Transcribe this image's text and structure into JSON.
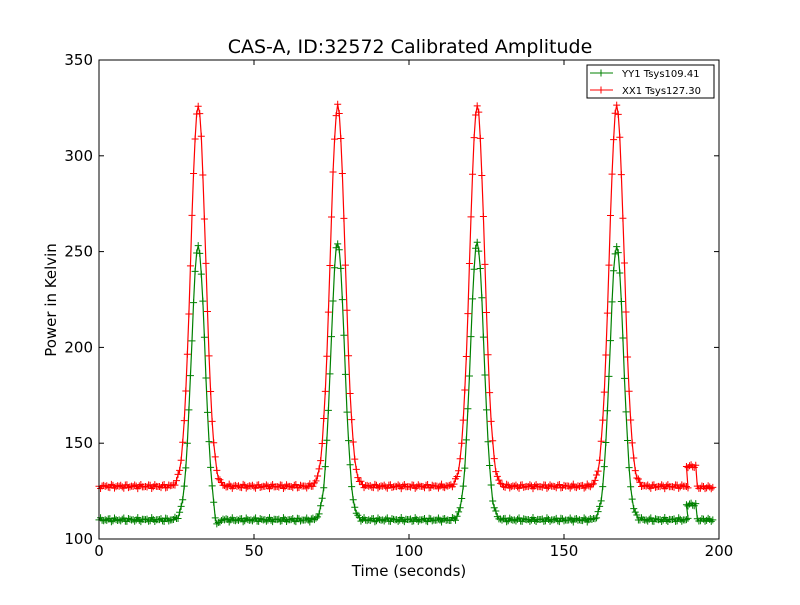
{
  "chart_data": {
    "type": "line",
    "title": "CAS-A, ID:32572 Calibrated Amplitude",
    "xlabel": "Time (seconds)",
    "ylabel": "Power in Kelvin",
    "xlim": [
      0,
      200
    ],
    "ylim": [
      100,
      350
    ],
    "xticks": [
      0,
      50,
      100,
      150,
      200
    ],
    "yticks": [
      100,
      150,
      200,
      250,
      300,
      350
    ],
    "grid": false,
    "legend_position": "top-right",
    "series": [
      {
        "name": "YY1 Tsys109.41",
        "color": "#008000",
        "marker": "plus",
        "baseline": 110,
        "peaks": [
          {
            "center": 32,
            "height": 253,
            "width": 2.2
          },
          {
            "center": 77,
            "height": 255,
            "width": 2.2
          },
          {
            "center": 122,
            "height": 255,
            "width": 2.2
          },
          {
            "center": 167,
            "height": 253,
            "width": 2.2
          }
        ],
        "dips": [
          {
            "center": 38,
            "depth": 104
          }
        ],
        "tail": [
          {
            "x0": 189.5,
            "x1": 192.5,
            "value": 118
          },
          {
            "x0": 193,
            "x1": 198,
            "value": 110
          }
        ]
      },
      {
        "name": "XX1 Tsys127.30",
        "color": "#ff0000",
        "marker": "plus",
        "baseline": 127.5,
        "peaks": [
          {
            "center": 32,
            "height": 326,
            "width": 2.4
          },
          {
            "center": 77,
            "height": 326,
            "width": 2.4
          },
          {
            "center": 122,
            "height": 326,
            "width": 2.4
          },
          {
            "center": 167,
            "height": 326,
            "width": 2.4
          }
        ],
        "dips": [],
        "tail": [
          {
            "x0": 189.5,
            "x1": 192.5,
            "value": 138
          },
          {
            "x0": 193,
            "x1": 198,
            "value": 127
          }
        ]
      }
    ]
  }
}
